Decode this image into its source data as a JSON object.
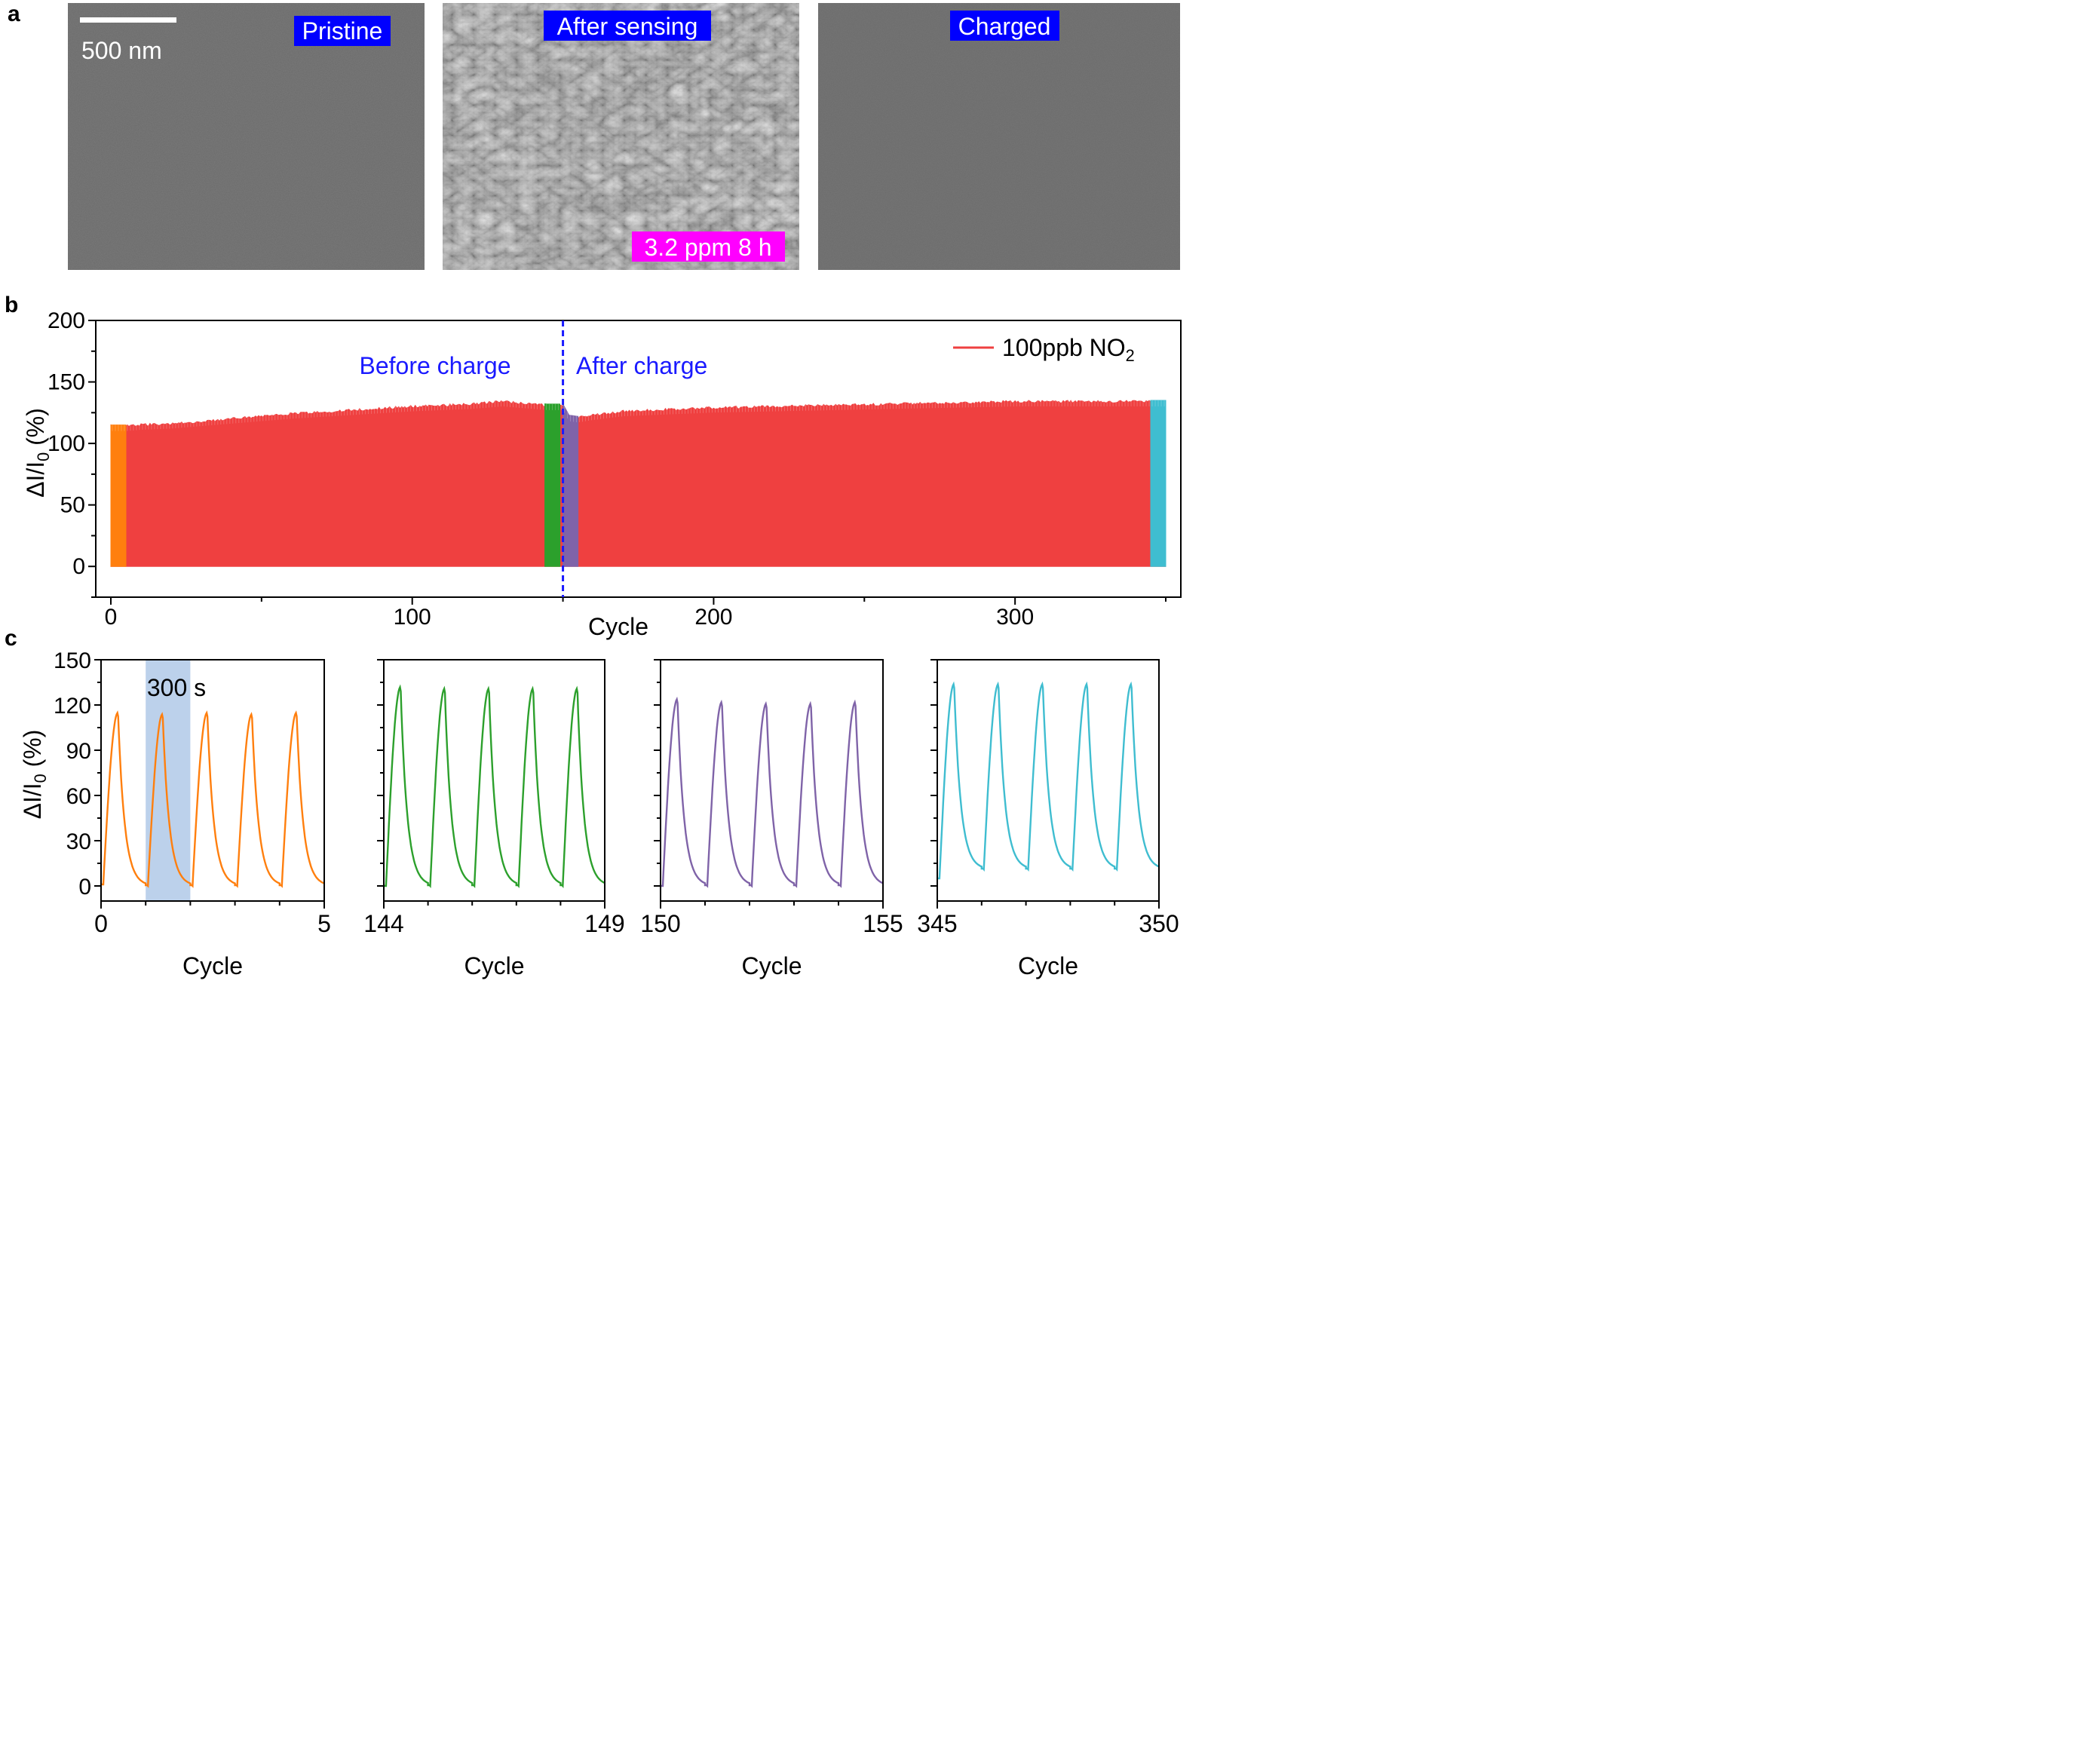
{
  "panel_a": {
    "letter": "a",
    "scale_bar": "500 nm",
    "images": [
      {
        "label": "Pristine",
        "texture": "smooth-gray",
        "color": "#6a6a6a"
      },
      {
        "label": "After sensing",
        "sublabel": "3.2 ppm 8 h",
        "texture": "flaky-nanosheets",
        "color": "#8a8a8a"
      },
      {
        "label": "Charged",
        "texture": "smooth-gray",
        "color": "#6b6b6b"
      }
    ],
    "label_bg": "#0000ff",
    "sublabel_bg": "#ff00ff"
  },
  "panel_b": {
    "letter": "b"
  },
  "panel_c": {
    "letter": "c",
    "shade_label": "300 s"
  },
  "chart_data": [
    {
      "id": "b",
      "type": "line",
      "xlabel": "Cycle",
      "ylabel": "ΔI/I0 (%)",
      "xlim": [
        -5,
        355
      ],
      "ylim": [
        -25,
        200
      ],
      "xticks": [
        0,
        100,
        200,
        300
      ],
      "yticks": [
        0,
        50,
        100,
        150,
        200
      ],
      "legend": {
        "label": "100ppb NO2",
        "color": "#ef4040",
        "position": "top-right"
      },
      "annotations": [
        {
          "text": "Before charge",
          "color": "#1a1aff"
        },
        {
          "text": "After charge",
          "color": "#1a1aff"
        }
      ],
      "divider_x": 150,
      "divider_color": "#1a1aff",
      "envelope": {
        "x": [
          0,
          1,
          3,
          5,
          10,
          20,
          40,
          60,
          80,
          100,
          120,
          130,
          135,
          140,
          145,
          150,
          152,
          155,
          160,
          170,
          180,
          200,
          220,
          240,
          260,
          280,
          300,
          320,
          340,
          345,
          350
        ],
        "y": [
          115,
          115,
          115,
          115,
          116,
          117,
          121,
          125,
          128,
          131,
          133,
          135,
          134,
          133,
          132,
          132,
          123,
          122,
          124,
          127,
          128,
          130,
          131,
          132,
          133,
          134,
          135,
          135,
          135,
          135,
          135
        ]
      },
      "highlight_segments": [
        {
          "range": [
            0,
            5
          ],
          "color": "#ff7f0e"
        },
        {
          "range": [
            144,
            149
          ],
          "color": "#2ca02c"
        },
        {
          "range": [
            150,
            155
          ],
          "color": "#7f63a8"
        },
        {
          "range": [
            345,
            350
          ],
          "color": "#3fbdd0"
        }
      ],
      "main_color": "#ef4040"
    },
    {
      "id": "c1",
      "type": "line",
      "xlabel": "Cycle",
      "ylabel": "ΔI/I0 (%)",
      "xlim": [
        0,
        5
      ],
      "xtick_labels": [
        "0",
        "5"
      ],
      "ylim": [
        -10,
        150
      ],
      "yticks": [
        0,
        30,
        60,
        90,
        120,
        150
      ],
      "show_ytick_labels": true,
      "color": "#ff7f0e",
      "peaks": [
        115,
        114,
        115,
        114,
        115
      ],
      "baseline_start": 1,
      "baseline_end": 0,
      "shade_x": [
        1,
        2
      ],
      "shade_color": "#a6c2e4"
    },
    {
      "id": "c2",
      "type": "line",
      "xlabel": "Cycle",
      "xlim": [
        144,
        149
      ],
      "xtick_labels": [
        "144",
        "149"
      ],
      "ylim": [
        -10,
        150
      ],
      "yticks": [
        0,
        30,
        60,
        90,
        120,
        150
      ],
      "show_ytick_labels": false,
      "color": "#2ca02c",
      "peaks": [
        132,
        131,
        131,
        131,
        131
      ],
      "baseline_start": 0,
      "baseline_end": 0
    },
    {
      "id": "c3",
      "type": "line",
      "xlabel": "Cycle",
      "xlim": [
        150,
        155
      ],
      "xtick_labels": [
        "150",
        "155"
      ],
      "ylim": [
        -10,
        150
      ],
      "yticks": [
        0,
        30,
        60,
        90,
        120,
        150
      ],
      "show_ytick_labels": false,
      "color": "#7f63a8",
      "peaks": [
        124,
        122,
        121,
        121,
        122
      ],
      "baseline_start": 0,
      "baseline_end": 0
    },
    {
      "id": "c4",
      "type": "line",
      "xlabel": "Cycle",
      "xlim": [
        345,
        350
      ],
      "xtick_labels": [
        "345",
        "350"
      ],
      "ylim": [
        -10,
        150
      ],
      "yticks": [
        0,
        30,
        60,
        90,
        120,
        150
      ],
      "show_ytick_labels": false,
      "color": "#3fbdd0",
      "peaks": [
        134,
        134,
        134,
        134,
        134
      ],
      "baseline_start": 5,
      "baseline_end": 11
    }
  ]
}
